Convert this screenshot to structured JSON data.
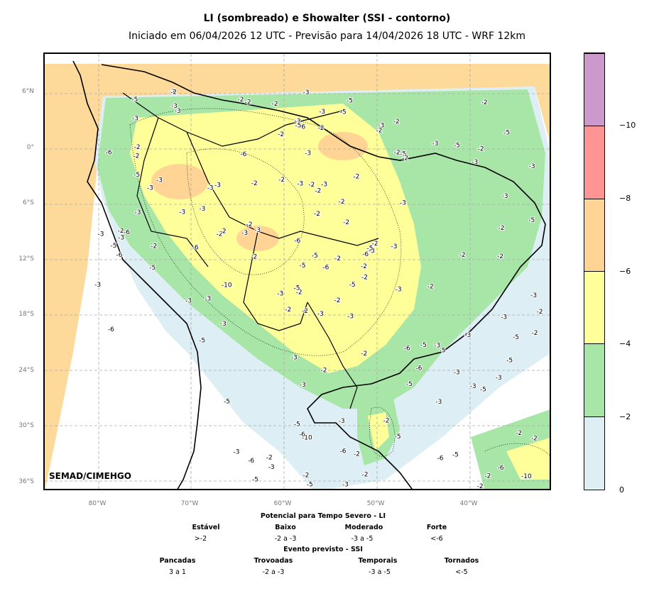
{
  "title": "LI (sombreado) e Showalter (SSI - contorno)",
  "subtitle": "Iniciado em 06/04/2026 12 UTC - Previsão para 14/04/2026 18 UTC - WRF 12km",
  "credit": "SEMAD/CIMEHGO",
  "lat_ticks": [
    "6°N",
    "0°",
    "6°S",
    "12°S",
    "18°S",
    "24°S",
    "30°S",
    "36°S"
  ],
  "lon_ticks": [
    "80°W",
    "70°W",
    "60°W",
    "50°W",
    "40°W"
  ],
  "colorbar": {
    "ticks": [
      "0",
      "−2",
      "−4",
      "−6",
      "−8",
      "−10"
    ],
    "colors": [
      "#ddeef5",
      "#a8e6a8",
      "#ffff99",
      "#ffd494",
      "#ff9494",
      "#cc99cc"
    ]
  },
  "legend": {
    "li_title": "Potencial para Tempo Severo - LI",
    "li_categories": [
      {
        "name": "Estável",
        "value": ">-2"
      },
      {
        "name": "Baixo",
        "value": "-2 a -3"
      },
      {
        "name": "Moderado",
        "value": "-3 a -5"
      },
      {
        "name": "Forte",
        "value": "<-6"
      }
    ],
    "ssi_title": "Evento previsto - SSI",
    "ssi_categories": [
      {
        "name": "Pancadas",
        "value": "3 a 1"
      },
      {
        "name": "Trovoadas",
        "value": "-2 a -3"
      },
      {
        "name": "Temporais",
        "value": "-3 a -5"
      },
      {
        "name": "Tornados",
        "value": "<-5"
      }
    ]
  },
  "contour_labels": [
    "-3",
    "-3",
    "-2",
    "-6",
    "-5",
    "-2",
    "-3",
    "-5",
    "-5",
    "-3",
    "-10",
    "-5",
    "-3",
    "-2",
    "-3",
    "-3",
    "-2",
    "-3",
    "-2",
    "-3",
    "-5",
    "-3",
    "-6",
    "-6",
    "-6",
    "-5",
    "-5",
    "-5",
    "-5",
    "-3",
    "-3",
    "-2",
    "-2",
    "-3",
    "-5",
    "-3",
    "-6",
    "-5",
    "-3",
    "-2",
    "-10",
    "-2",
    "-3",
    "-6",
    "-6",
    "-5",
    "-3",
    "-5",
    "-3",
    "-2",
    "-3",
    "-10",
    "-6",
    "-3",
    "-5",
    "-2",
    "-3",
    "-2",
    "-5",
    "-3",
    "-6",
    "-5",
    "-2",
    "-3",
    "-3",
    "-6",
    "-6",
    "-6",
    "-2",
    "-3",
    "-5",
    "-2",
    "-2",
    "-2",
    "-5",
    "-3",
    "-2",
    "-3",
    "-2",
    "-3",
    "-3",
    "-6",
    "-3",
    "-3",
    "-5",
    "-2",
    "-2",
    "-3",
    "-2",
    "-3",
    "-5",
    "-3",
    "-5",
    "-3",
    "-2",
    "-3",
    "-2",
    "-2",
    "-3",
    "-2",
    "-2",
    "-5",
    "-2",
    "-2",
    "-2",
    "-2",
    "-2",
    "-2",
    "-5",
    "-6",
    "-3",
    "-2",
    "-5",
    "-2",
    "-2",
    "-6",
    "-5",
    "-3",
    "-3",
    "-2",
    "-2",
    "-3",
    "-2",
    "-3",
    "-2",
    "-2",
    "-2",
    "-2",
    "-6",
    "-6",
    "-5",
    "-2",
    "-3",
    "-2",
    "-5",
    "-3",
    "-5",
    "-3",
    "-2",
    "-3",
    "-2",
    "-2",
    "-2",
    "-3",
    "-3",
    "-2",
    "-3",
    "-3",
    "-2",
    "-2",
    "-2",
    "-5",
    "-2"
  ]
}
